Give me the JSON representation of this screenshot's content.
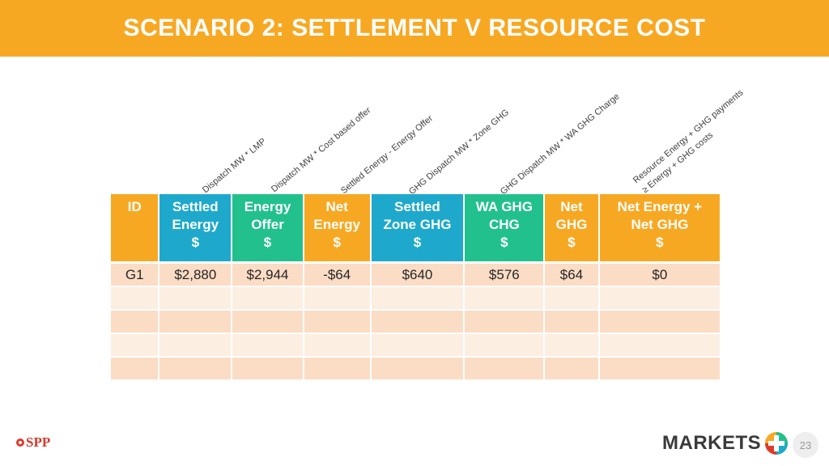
{
  "title": "SCENARIO 2:  SETTLEMENT V RESOURCE COST",
  "formula_labels": [
    "Dispatch MW * LMP",
    "Dispatch MW * Cost based offer",
    "Settled Energy - Energy Offer",
    "GHG Dispatch MW * Zone GHG",
    "GHG Dispatch MW * WA GHG Charge",
    "Resource Energy + GHG payments",
    "≥ Energy + GHG costs"
  ],
  "table": {
    "headers": [
      {
        "line1": "ID",
        "line2": "",
        "line3": ""
      },
      {
        "line1": "Settled",
        "line2": "Energy",
        "line3": "$"
      },
      {
        "line1": "Energy",
        "line2": "Offer",
        "line3": "$"
      },
      {
        "line1": "Net",
        "line2": "Energy",
        "line3": "$"
      },
      {
        "line1": "Settled",
        "line2": "Zone GHG",
        "line3": "$"
      },
      {
        "line1": "WA GHG",
        "line2": "CHG",
        "line3": "$"
      },
      {
        "line1": "Net",
        "line2": "GHG",
        "line3": "$"
      },
      {
        "line1": "Net Energy +",
        "line2": "Net GHG",
        "line3": "$"
      }
    ],
    "rows": [
      [
        "G1",
        "$2,880",
        "$2,944",
        "-$64",
        "$640",
        "$576",
        "$64",
        "$0"
      ]
    ]
  },
  "footer": {
    "spp_logo_text": "SPP",
    "markets_logo_text": "MARKETS",
    "page_number": "23"
  },
  "colors": {
    "title_bar": "#f7a823",
    "header_orange": "#f7a823",
    "header_blue": "#1ea9cc",
    "header_green": "#22c08c",
    "negative": "#e02020"
  }
}
